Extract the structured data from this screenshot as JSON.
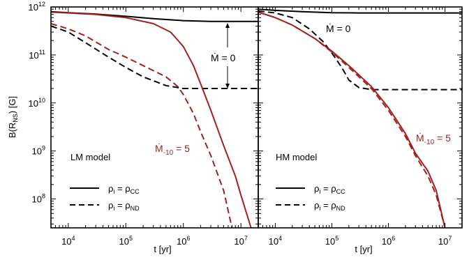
{
  "figure": {
    "ylabel": "B(R",
    "ylabel_sub": "NS",
    "ylabel_tail": ") [G]",
    "xlabel": "t [yr]"
  },
  "colors": {
    "black": "#000000",
    "red": "#a31f1f"
  },
  "chart_data": [
    {
      "type": "line",
      "panel": "left",
      "model_label": "LM model",
      "x_scale": "log",
      "y_scale": "log",
      "xlim": [
        5000,
        20000000
      ],
      "ylim": [
        25000000,
        1000000000000
      ],
      "x_ticks": [
        {
          "base": "10",
          "exp": "4",
          "value": 10000
        },
        {
          "base": "10",
          "exp": "5",
          "value": 100000
        },
        {
          "base": "10",
          "exp": "6",
          "value": 1000000
        },
        {
          "base": "10",
          "exp": "7",
          "value": 10000000
        }
      ],
      "y_ticks": [
        {
          "base": "10",
          "exp": "8",
          "value": 100000000
        },
        {
          "base": "10",
          "exp": "9",
          "value": 1000000000
        },
        {
          "base": "10",
          "exp": "10",
          "value": 10000000000
        },
        {
          "base": "10",
          "exp": "11",
          "value": 100000000000
        },
        {
          "base": "10",
          "exp": "12",
          "value": 1000000000000
        }
      ],
      "grid": false,
      "legend": {
        "position": "bottom-left",
        "entries": [
          {
            "style": "solid",
            "rho": "ρ",
            "sub_i": "i",
            "eq": " = ρ",
            "sub_target": "CC"
          },
          {
            "style": "dashed",
            "rho": "ρ",
            "sub_i": "i",
            "eq": " = ρ",
            "sub_target": "ND"
          }
        ]
      },
      "annotations": [
        {
          "text": "Ṁ = 0",
          "color": "black",
          "arrows": true
        },
        {
          "text_main": "Ṁ",
          "text_sub": "-10",
          "text_tail": " = 5",
          "color": "red"
        }
      ],
      "series": [
        {
          "style": "solid",
          "color": "black",
          "x": [
            5000,
            10000,
            30000,
            100000,
            300000,
            1000000,
            3000000,
            10000000,
            20000000
          ],
          "y": [
            800000000000,
            760000000000,
            710000000000,
            640000000000,
            570000000000,
            520000000000,
            500000000000,
            500000000000,
            500000000000
          ]
        },
        {
          "style": "dashed",
          "color": "black",
          "x": [
            5000,
            10000,
            20000,
            50000,
            100000,
            200000,
            500000,
            1000000,
            2000000,
            5000000,
            20000000
          ],
          "y": [
            400000000000,
            300000000000,
            180000000000,
            90000000000,
            55000000000,
            35000000000,
            23000000000,
            20000000000,
            20000000000,
            20000000000,
            20000000000
          ]
        },
        {
          "style": "solid",
          "color": "red",
          "x": [
            5000,
            10000,
            30000,
            100000,
            300000,
            600000,
            1000000,
            1500000,
            2000000,
            3000000,
            5000000,
            8000000,
            10000000,
            15000000
          ],
          "y": [
            780000000000,
            750000000000,
            700000000000,
            600000000000,
            450000000000,
            300000000000,
            150000000000,
            60000000000,
            25000000000,
            7000000000,
            1300000000,
            300000000,
            120000000,
            25000000
          ]
        },
        {
          "style": "dashed",
          "color": "red",
          "x": [
            5000,
            10000,
            20000,
            50000,
            100000,
            200000,
            500000,
            800000,
            1000000,
            1500000,
            2000000,
            3000000,
            5000000,
            7000000
          ],
          "y": [
            450000000000,
            350000000000,
            250000000000,
            130000000000,
            90000000000,
            60000000000,
            35000000000,
            22000000000,
            15000000000,
            6000000000,
            2500000000,
            800000000,
            150000000,
            25000000
          ]
        }
      ]
    },
    {
      "type": "line",
      "panel": "right",
      "model_label": "HM model",
      "x_scale": "log",
      "y_scale": "log",
      "xlim": [
        5000,
        20000000
      ],
      "ylim": [
        25000000,
        1000000000000
      ],
      "x_ticks": [
        {
          "base": "10",
          "exp": "4",
          "value": 10000
        },
        {
          "base": "10",
          "exp": "5",
          "value": 100000
        },
        {
          "base": "10",
          "exp": "6",
          "value": 1000000
        },
        {
          "base": "10",
          "exp": "7",
          "value": 10000000
        }
      ],
      "grid": false,
      "legend": {
        "position": "bottom-left",
        "entries": [
          {
            "style": "solid",
            "rho": "ρ",
            "sub_i": "i",
            "eq": " = ρ",
            "sub_target": "CC"
          },
          {
            "style": "dashed",
            "rho": "ρ",
            "sub_i": "i",
            "eq": " = ρ",
            "sub_target": "ND"
          }
        ]
      },
      "annotations": [
        {
          "text": "Ṁ = 0",
          "color": "black",
          "arrows": false
        },
        {
          "text_main": "Ṁ",
          "text_sub": "-10",
          "text_tail": " = 5",
          "color": "red"
        }
      ],
      "series": [
        {
          "style": "solid",
          "color": "black",
          "x": [
            5000,
            10000,
            30000,
            100000,
            300000,
            1000000,
            3000000,
            10000000,
            20000000
          ],
          "y": [
            900000000000,
            850000000000,
            800000000000,
            760000000000,
            750000000000,
            750000000000,
            750000000000,
            750000000000,
            750000000000
          ]
        },
        {
          "style": "dashed",
          "color": "black",
          "x": [
            5000,
            10000,
            20000,
            40000,
            70000,
            100000,
            150000,
            200000,
            300000,
            500000,
            1000000,
            20000000
          ],
          "y": [
            820000000000,
            750000000000,
            600000000000,
            350000000000,
            190000000000,
            110000000000,
            55000000000,
            30000000000,
            21000000000,
            19000000000,
            19000000000,
            19000000000
          ]
        },
        {
          "style": "solid",
          "color": "red",
          "x": [
            5000,
            10000,
            20000,
            50000,
            100000,
            200000,
            500000,
            1000000,
            2000000,
            3000000,
            5000000,
            7000000,
            10000000
          ],
          "y": [
            780000000000,
            600000000000,
            420000000000,
            220000000000,
            120000000000,
            60000000000,
            22000000000,
            8000000000,
            2300000000,
            900000000,
            380000000,
            150000000,
            25000000
          ]
        },
        {
          "style": "dashed",
          "color": "red",
          "x": [
            5000,
            10000,
            20000,
            50000,
            100000,
            200000,
            500000,
            1000000,
            2000000,
            3000000,
            5000000,
            7000000,
            10000000
          ],
          "y": [
            780000000000,
            600000000000,
            420000000000,
            220000000000,
            115000000000,
            55000000000,
            20000000000,
            7000000000,
            2000000000,
            800000000,
            300000000,
            120000000,
            25000000
          ]
        }
      ]
    }
  ]
}
